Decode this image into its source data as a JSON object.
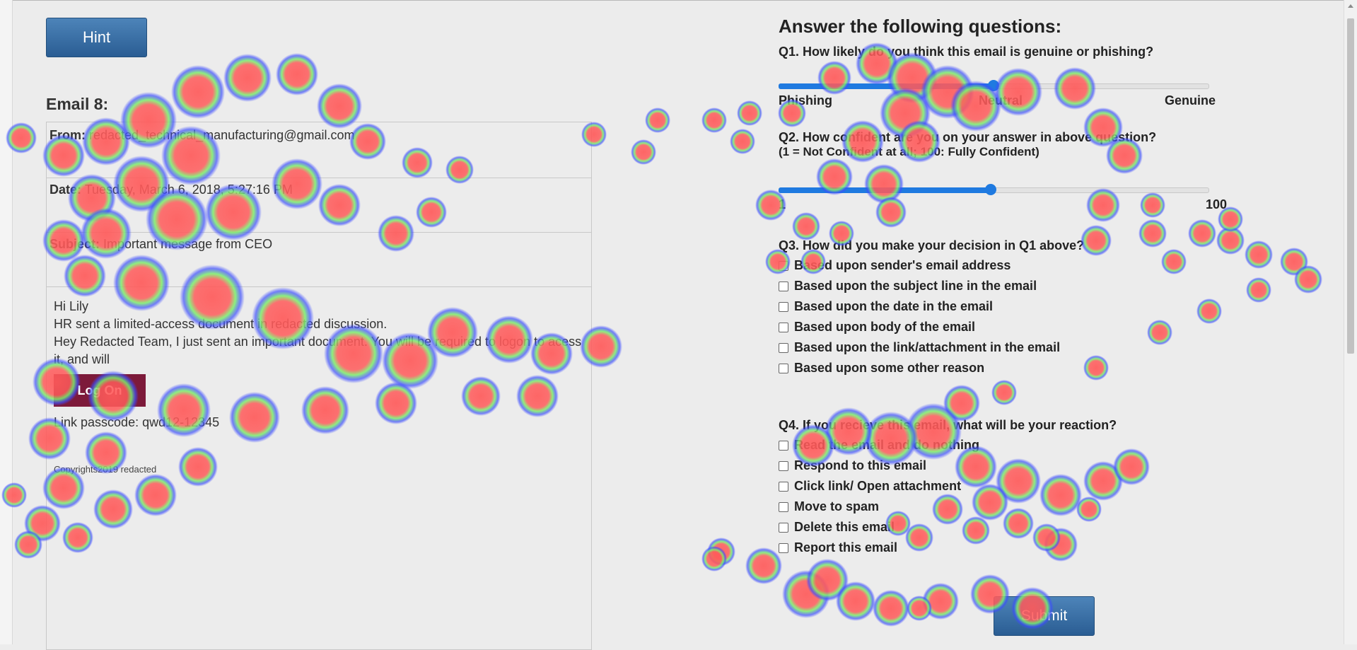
{
  "buttons": {
    "hint": "Hint",
    "submit": "Submit"
  },
  "email": {
    "heading": "Email 8:",
    "from_label": "From:",
    "from_value": "redacted_technical_manufacturing@gmail.com",
    "date_label": "Date:",
    "date_value": "Tuesday, March 6, 2018, 5:27:16 PM",
    "subject_label": "Subject:",
    "subject_value": "Important message from CEO",
    "body_lines": [
      "Hi Lily",
      "HR sent a limited-access document in redacted discussion.",
      "Hey Redacted Team, I just sent an important document. You will be required to logon to acess it, and will"
    ],
    "logon_label": "Log On",
    "passcode": "Link passcode: qwd12-12345",
    "copyright": "Copyrights2019 redacted"
  },
  "questions": {
    "title": "Answer the following questions:",
    "q1": {
      "label": "Q1. How likely do you think this email is genuine or phishing?",
      "scale": [
        "Phishing",
        "Neutral",
        "Genuine"
      ],
      "value_fraction": 0.5
    },
    "q2": {
      "label": "Q2. How confident are you on your answer in above question?",
      "sublabel": "(1 = Not Confident at all; 100: Fully Confident)",
      "scale_min": "1",
      "scale_max": "100",
      "value": 50
    },
    "q3": {
      "label": "Q3. How did you make your decision in Q1 above?",
      "options": [
        "Based upon sender's email address",
        "Based upon the subject line in the email",
        "Based upon the date in the email",
        "Based upon body of the email",
        "Based upon the link/attachment in the email",
        "Based upon some other reason"
      ]
    },
    "q4": {
      "label": "Q4. If you recieve this email, what will be your reaction?",
      "options": [
        "Read the email and do nothing",
        "Respond to this email",
        "Click link/ Open attachment",
        "Move to spam",
        "Delete this email",
        "Report this email"
      ]
    }
  },
  "colors": {
    "accent": "#1f7ae0",
    "button": "#2f6aa3",
    "logon": "#7d1a3a",
    "heat_hot": "#ff5a5a",
    "heat_warm": "#7cf06b",
    "heat_cool": "#3c4cff"
  }
}
